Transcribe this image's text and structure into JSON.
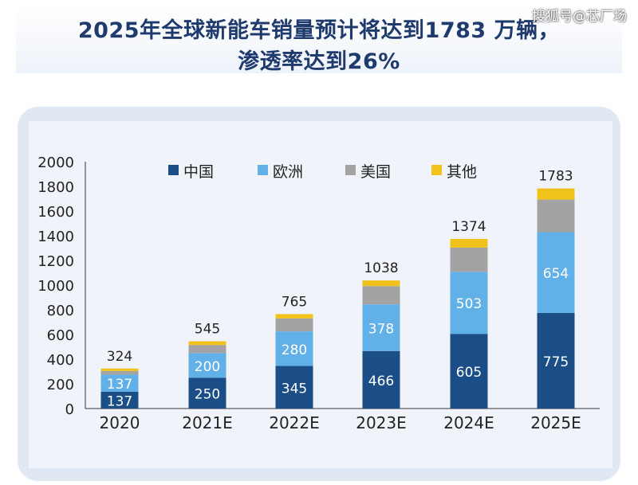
{
  "header": {
    "title_line1": "2025年全球新能车销量预计将达到1783 万辆，",
    "title_line2": "渗透率达到26%",
    "watermark": "搜狐号@芯厂场"
  },
  "chart_data": {
    "type": "bar",
    "stacked": true,
    "categories": [
      "2020",
      "2021E",
      "2022E",
      "2023E",
      "2024E",
      "2025E"
    ],
    "series": [
      {
        "name": "中国",
        "color": "#1b4e86",
        "values": [
          137,
          250,
          345,
          466,
          605,
          775
        ]
      },
      {
        "name": "欧洲",
        "color": "#62b0e8",
        "values": [
          137,
          200,
          280,
          378,
          503,
          654
        ]
      },
      {
        "name": "美国",
        "color": "#a3a3a3",
        "values": [
          30,
          65,
          105,
          148,
          196,
          264
        ]
      },
      {
        "name": "其他",
        "color": "#f1c21b",
        "values": [
          20,
          30,
          35,
          46,
          70,
          90
        ]
      }
    ],
    "totals": [
      324,
      545,
      765,
      1038,
      1374,
      1783
    ],
    "data_labels": {
      "中国": [
        "137",
        "250",
        "345",
        "466",
        "605",
        "775"
      ],
      "欧洲": [
        "137",
        "200",
        "280",
        "378",
        "503",
        "654"
      ]
    },
    "ylim": [
      0,
      2000
    ],
    "yticks": [
      "0",
      "200",
      "400",
      "600",
      "800",
      "1000",
      "1200",
      "1400",
      "1600",
      "1800",
      "2000"
    ],
    "legend_position": "top",
    "grid": false
  }
}
